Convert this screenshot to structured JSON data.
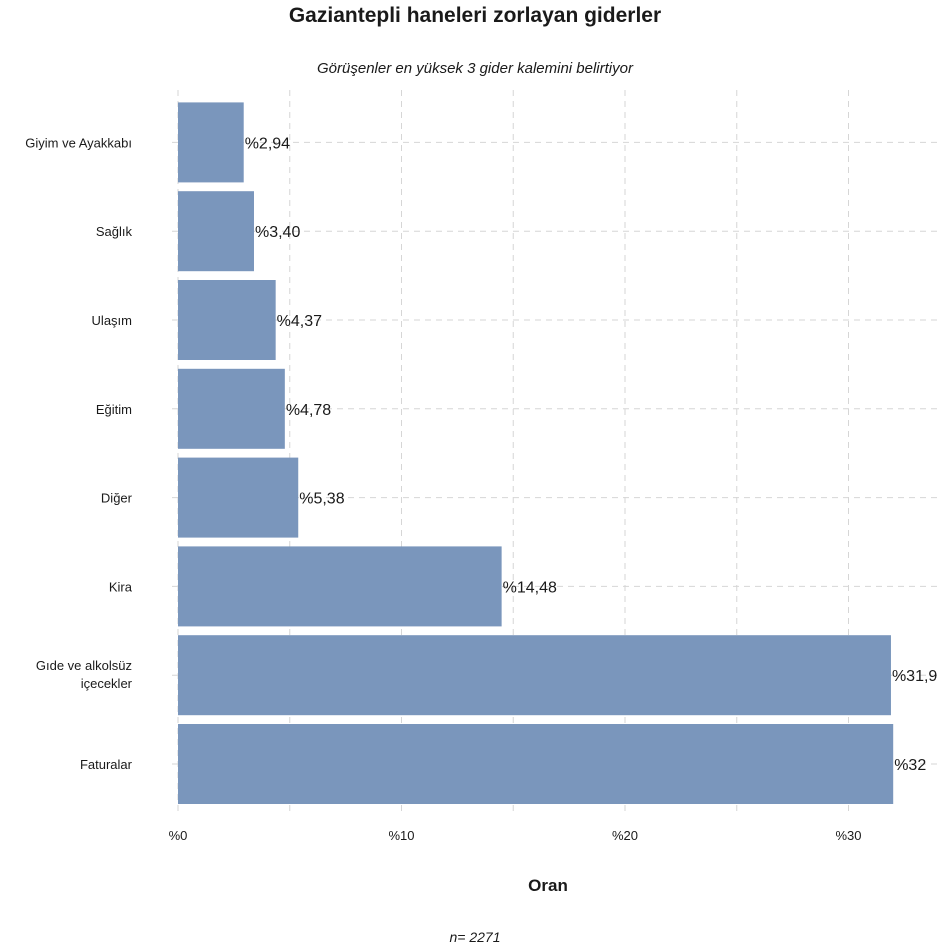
{
  "chart_data": {
    "type": "bar",
    "orientation": "horizontal",
    "title": "Gaziantepli haneleri zorlayan giderler",
    "subtitle": "Görüşenler en yüksek 3 gider kalemini belirtiyor",
    "xlabel": "Oran",
    "ylabel": "",
    "caption": "n=  2271",
    "categories": [
      "Giyim ve Ayakkabı",
      "Sağlık",
      "Ulaşım",
      "Eğitim",
      "Diğer",
      "Kira",
      "Gıde ve alkolsüz içecekler",
      "Faturalar"
    ],
    "values": [
      2.94,
      3.4,
      4.37,
      4.78,
      5.38,
      14.48,
      31.9,
      32.0
    ],
    "data_labels": [
      "%2,94",
      "%3,40",
      "%4,37",
      "%4,78",
      "%5,38",
      "%14,48",
      "%31,9",
      "%32"
    ],
    "x_ticks": [
      0,
      10,
      20,
      30
    ],
    "x_tick_labels": [
      "%0",
      "%10",
      "%20",
      "%30"
    ],
    "xlim": [
      0,
      34
    ],
    "grid": true,
    "bar_color": "#7a96bc",
    "grid_color": "#d6d6d6"
  }
}
